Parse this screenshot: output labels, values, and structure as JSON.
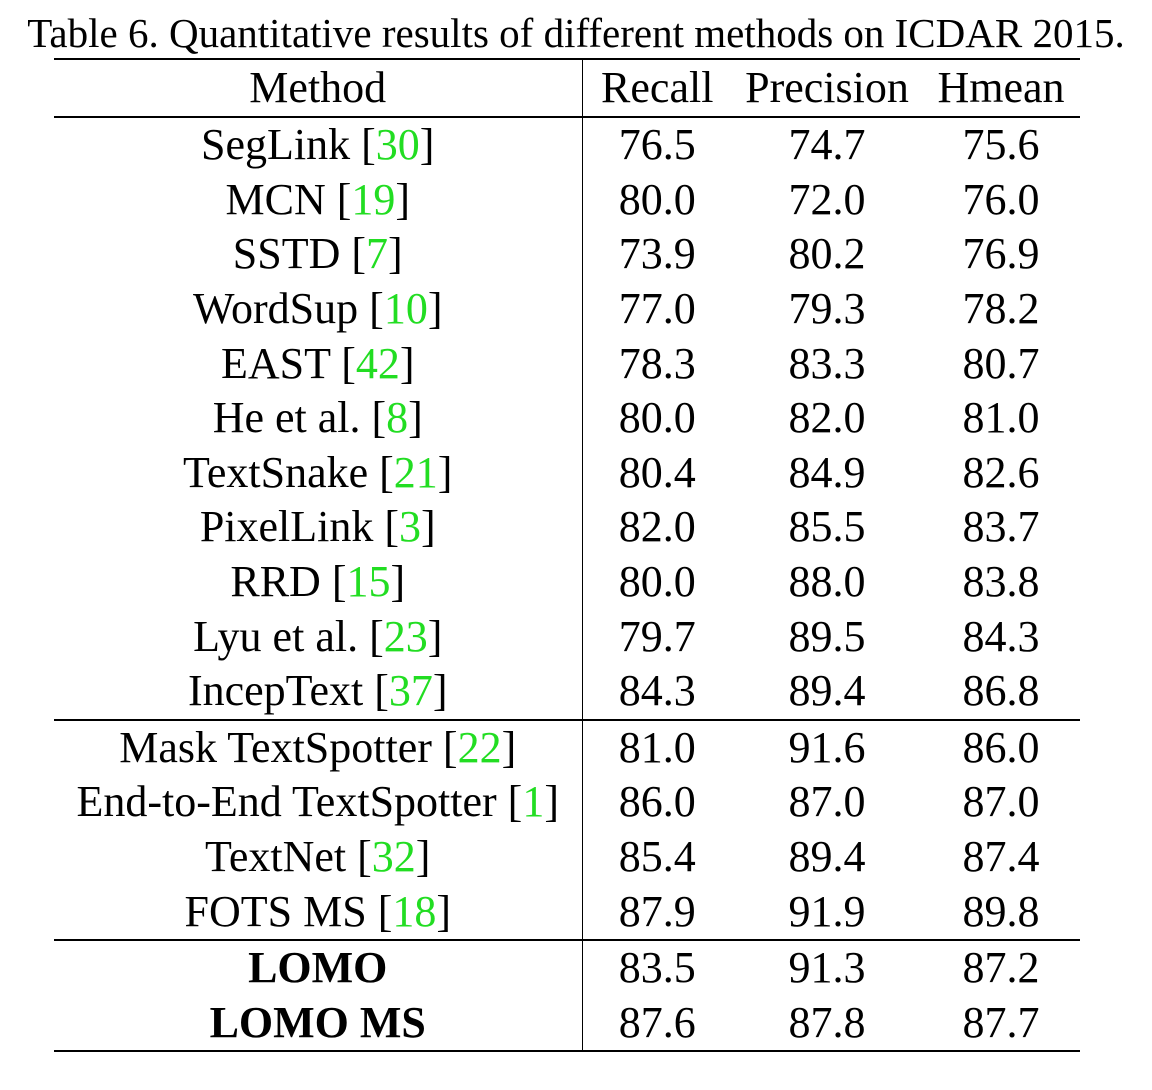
{
  "caption": "Table 6. Quantitative results of different methods on ICDAR 2015.",
  "headers": {
    "method": "Method",
    "recall": "Recall",
    "precision": "Precision",
    "hmean": "Hmean"
  },
  "groups": [
    [
      {
        "method": "SegLink",
        "ref": "30",
        "recall": "76.5",
        "precision": "74.7",
        "hmean": "75.6"
      },
      {
        "method": "MCN",
        "ref": "19",
        "recall": "80.0",
        "precision": "72.0",
        "hmean": "76.0"
      },
      {
        "method": "SSTD",
        "ref": "7",
        "recall": "73.9",
        "precision": "80.2",
        "hmean": "76.9"
      },
      {
        "method": "WordSup",
        "ref": "10",
        "recall": "77.0",
        "precision": "79.3",
        "hmean": "78.2"
      },
      {
        "method": "EAST",
        "ref": "42",
        "recall": "78.3",
        "precision": "83.3",
        "hmean": "80.7"
      },
      {
        "method": "He et al.",
        "ref": "8",
        "recall": "80.0",
        "precision": "82.0",
        "hmean": "81.0"
      },
      {
        "method": "TextSnake",
        "ref": "21",
        "recall": "80.4",
        "precision": "84.9",
        "hmean": "82.6"
      },
      {
        "method": "PixelLink",
        "ref": "3",
        "recall": "82.0",
        "precision": "85.5",
        "hmean": "83.7"
      },
      {
        "method": "RRD",
        "ref": "15",
        "recall": "80.0",
        "precision": "88.0",
        "hmean": "83.8"
      },
      {
        "method": "Lyu et al.",
        "ref": "23",
        "recall": "79.7",
        "precision": "89.5",
        "hmean": "84.3"
      },
      {
        "method": "IncepText",
        "ref": "37",
        "recall": "84.3",
        "precision": "89.4",
        "hmean": "86.8"
      }
    ],
    [
      {
        "method": "Mask TextSpotter",
        "ref": "22",
        "recall": "81.0",
        "precision": "91.6",
        "hmean": "86.0"
      },
      {
        "method": "End-to-End TextSpotter",
        "ref": "1",
        "recall": "86.0",
        "precision": "87.0",
        "hmean": "87.0"
      },
      {
        "method": "TextNet",
        "ref": "32",
        "recall": "85.4",
        "precision": "89.4",
        "hmean": "87.4"
      },
      {
        "method": "FOTS MS",
        "ref": "18",
        "recall": "87.9",
        "precision": "91.9",
        "hmean": "89.8",
        "bold_values": true
      }
    ],
    [
      {
        "method": "LOMO",
        "ref": "",
        "recall": "83.5",
        "precision": "91.3",
        "hmean": "87.2",
        "bold_method": true
      },
      {
        "method": "LOMO MS",
        "ref": "",
        "recall": "87.6",
        "precision": "87.8",
        "hmean": "87.7",
        "bold_method": true
      }
    ]
  ],
  "colors": {
    "reference": "#22dd22",
    "text": "#000000"
  }
}
